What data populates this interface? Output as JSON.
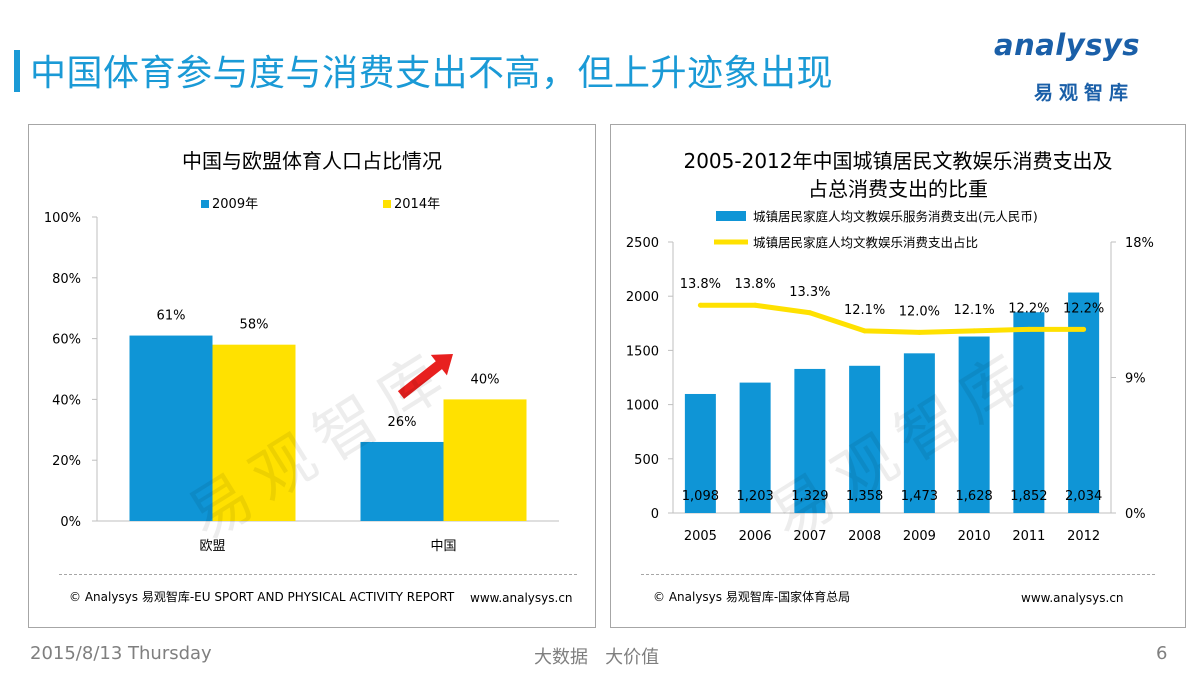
{
  "slide": {
    "title": "中国体育参与度与消费支出不高，但上升迹象出现",
    "logo_text": "analysys",
    "logo_cn": "易观智库",
    "watermark": "易观智库",
    "footer_date": "2015/8/13 Thursday",
    "footer_center": "大数据   大价值",
    "page_number": "6"
  },
  "colors": {
    "blue": "#0f95d6",
    "yellow": "#ffe100",
    "accent": "#1a9ad6",
    "arrow": "#e8201f",
    "footer_gray": "#7f7f7f"
  },
  "left_panel": {
    "source": "© Analysys 易观智库-EU SPORT AND PHYSICAL ACTIVITY REPORT",
    "url": "www.analysys.cn"
  },
  "right_panel": {
    "source": "© Analysys 易观智库-国家体育总局",
    "url": "www.analysys.cn"
  },
  "chart_data": [
    {
      "type": "bar",
      "title": "中国与欧盟体育人口占比情况",
      "categories": [
        "欧盟",
        "中国"
      ],
      "series": [
        {
          "name": "2009年",
          "values": [
            61,
            26
          ],
          "labels": [
            "61%",
            "26%"
          ]
        },
        {
          "name": "2014年",
          "values": [
            58,
            40
          ],
          "labels": [
            "58%",
            "40%"
          ]
        }
      ],
      "ylim": [
        0,
        100
      ],
      "yticks": [
        "0%",
        "20%",
        "40%",
        "60%",
        "80%",
        "100%"
      ],
      "annotation": "upward-arrow",
      "legend": "top"
    },
    {
      "type": "bar+line",
      "title": [
        "2005-2012年中国城镇居民文教娱乐消费支出及",
        "占总消费支出的比重"
      ],
      "categories": [
        "2005",
        "2006",
        "2007",
        "2008",
        "2009",
        "2010",
        "2011",
        "2012"
      ],
      "series": [
        {
          "name": "城镇居民家庭人均文教娱乐服务消费支出(元人民币)",
          "type": "bar",
          "axis": "left",
          "values": [
            1098,
            1203,
            1329,
            1358,
            1473,
            1628,
            1852,
            2034
          ],
          "labels": [
            "1,098",
            "1,203",
            "1,329",
            "1,358",
            "1,473",
            "1,628",
            "1,852",
            "2,034"
          ]
        },
        {
          "name": "城镇居民家庭人均文教娱乐消费支出占比",
          "type": "line",
          "axis": "right",
          "values": [
            13.8,
            13.8,
            13.3,
            12.1,
            12.0,
            12.1,
            12.2,
            12.2
          ],
          "labels": [
            "13.8%",
            "13.8%",
            "13.3%",
            "12.1%",
            "12.0%",
            "12.1%",
            "12.2%",
            "12.2%"
          ]
        }
      ],
      "ylim_left": [
        0,
        2500
      ],
      "yticks_left": [
        "0",
        "500",
        "1000",
        "1500",
        "2000",
        "2500"
      ],
      "ylim_right": [
        0,
        18
      ],
      "yticks_right": [
        "0%",
        "9%",
        "18%"
      ],
      "legend": "top"
    }
  ]
}
